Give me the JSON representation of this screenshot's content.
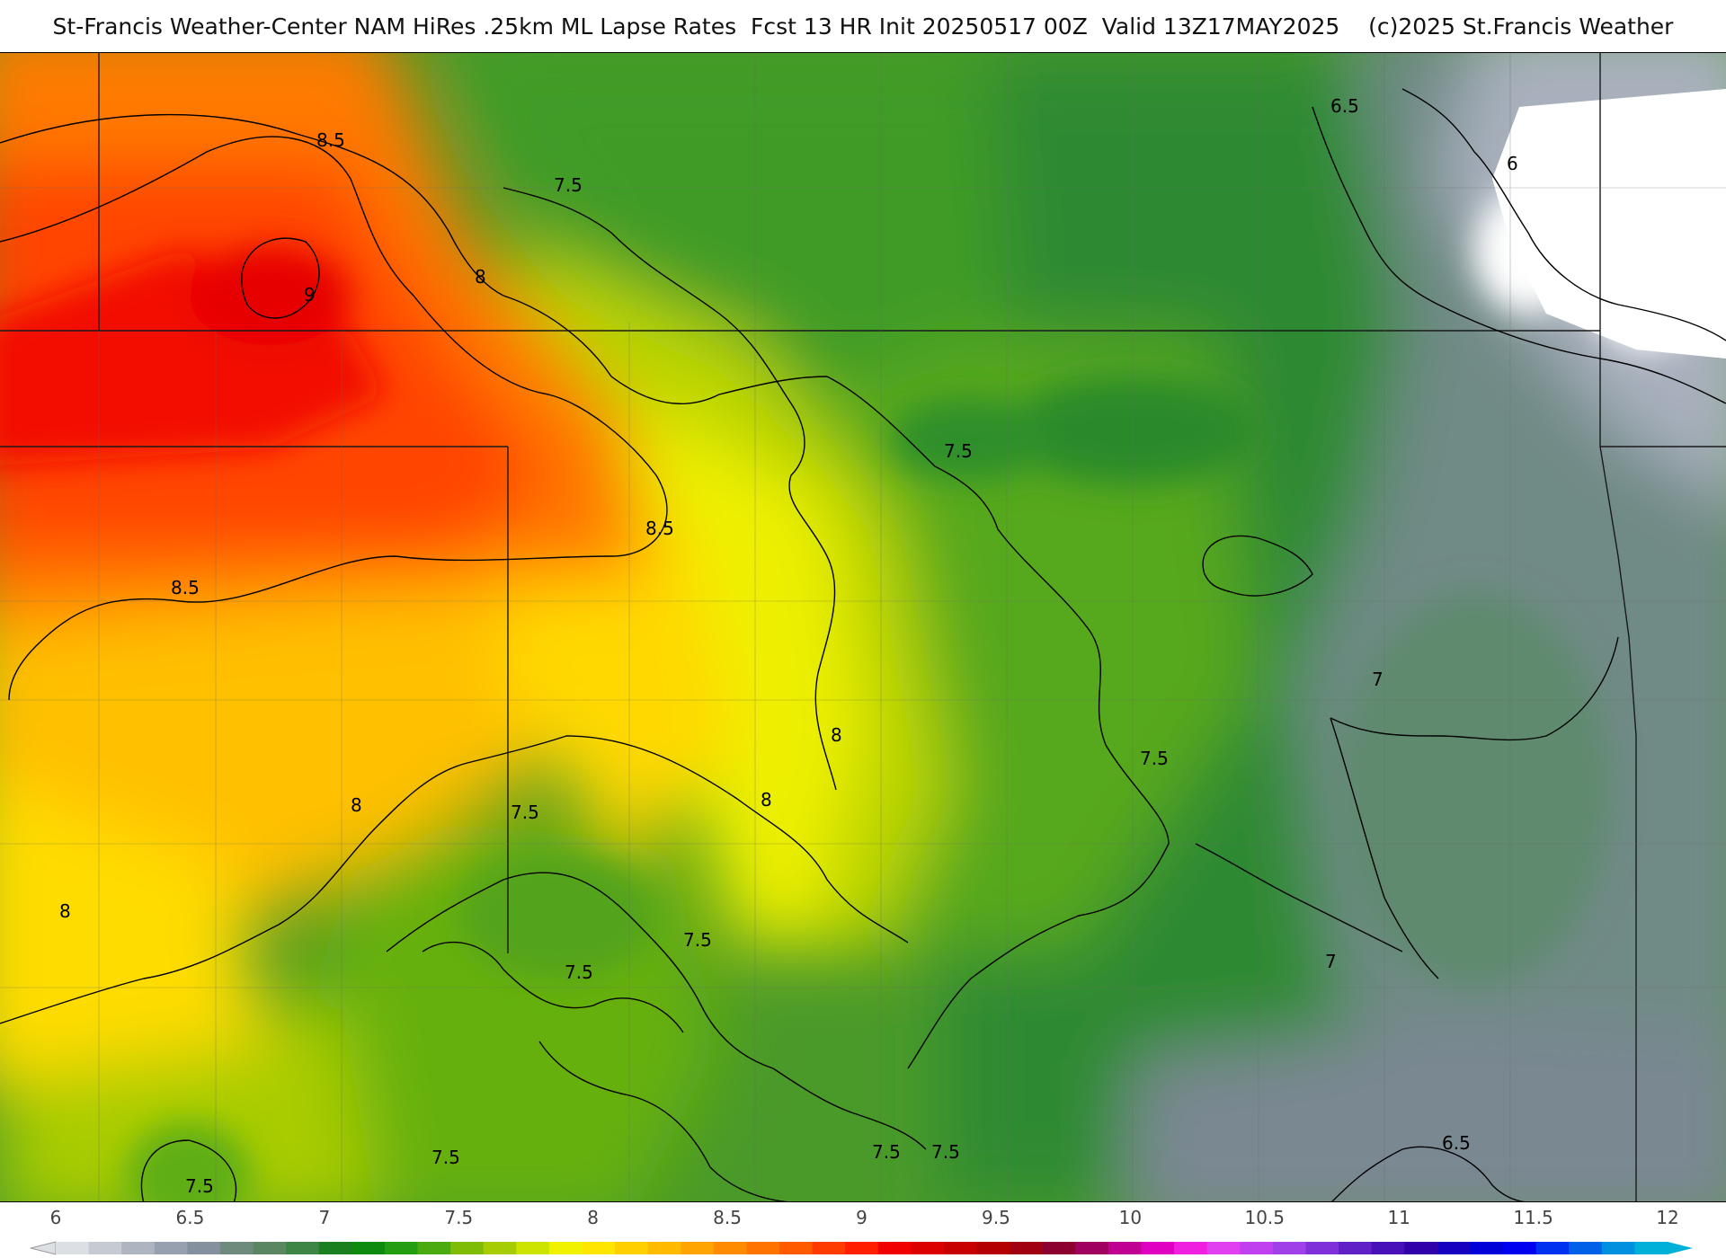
{
  "title": "St-Francis Weather-Center NAM HiRes .25km ML Lapse Rates  Fcst 13 HR Init 20250517 00Z  Valid 13Z17MAY2025    (c)2025 St.Francis Weather",
  "legend": {
    "ticks": [
      "6",
      "6.5",
      "7",
      "7.5",
      "8",
      "8.5",
      "9",
      "9.5",
      "10",
      "10.5",
      "11",
      "11.5",
      "12"
    ],
    "colors": [
      "#dcdfe3",
      "#c6cad3",
      "#aeb4c0",
      "#97a0ae",
      "#84909e",
      "#6e8a7c",
      "#5a8762",
      "#3d8545",
      "#1a7f1f",
      "#0e8a0e",
      "#239d12",
      "#4aaa10",
      "#7fbc08",
      "#a6cc03",
      "#cde400",
      "#f0f200",
      "#ffe600",
      "#ffd000",
      "#ffbb00",
      "#ffa400",
      "#ff8c00",
      "#ff7400",
      "#ff5a00",
      "#ff3c00",
      "#ff1e00",
      "#f00000",
      "#dd0000",
      "#c80000",
      "#b40000",
      "#a00010",
      "#8c0030",
      "#a00060",
      "#c00090",
      "#e000c0",
      "#f020e0",
      "#e040f0",
      "#c040f0",
      "#a040e8",
      "#8030d8",
      "#6020c8",
      "#4810b8",
      "#3000a8",
      "#1800c0",
      "#0000d8",
      "#0000f0",
      "#0030f0",
      "#0060e8",
      "#0090e0",
      "#00b0d8"
    ]
  },
  "contour_labels": [
    "8.5",
    "9",
    "8",
    "7.5",
    "8.5",
    "8.5",
    "8",
    "8",
    "8",
    "8",
    "7.5",
    "7.5",
    "7.5",
    "7.5",
    "7.5",
    "7.5",
    "7.5",
    "7.5",
    "7.5",
    "7",
    "7",
    "6.5",
    "6",
    "6.5"
  ]
}
